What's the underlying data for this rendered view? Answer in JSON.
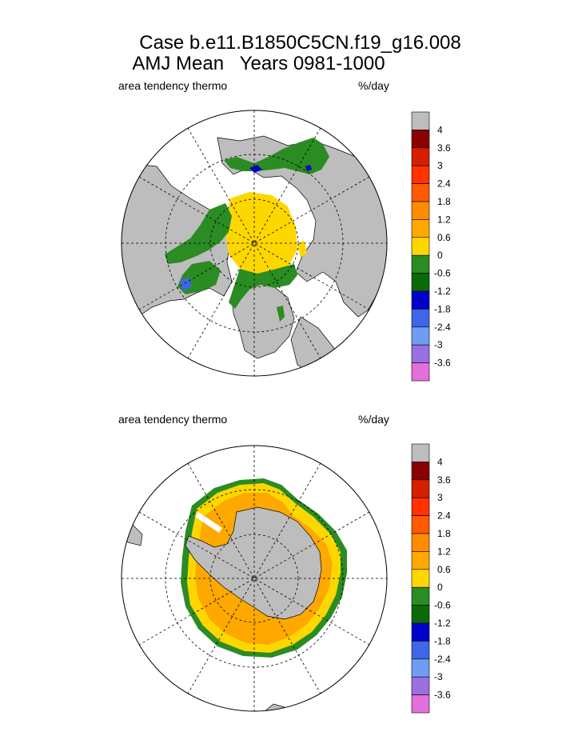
{
  "header": {
    "line1": "Case b.e11.B1850C5CN.f19_g16.008",
    "line2": "AMJ Mean   Years 0981-1000"
  },
  "colors": {
    "land": "#bdbdbd",
    "bins": [
      "#e36fdc",
      "#9a6fe0",
      "#6f9df2",
      "#3f66e8",
      "#0000c8",
      "#0a6a0a",
      "#2a8c22",
      "#ffd700",
      "#ffa800",
      "#ff8c00",
      "#ff5a00",
      "#ff3200",
      "#d61e00",
      "#8b0000"
    ]
  },
  "panels": [
    {
      "id": "north",
      "left_label": "area tendency thermo",
      "right_label": "%/day",
      "colorbar_ticks": [
        "4",
        "3.6",
        "3",
        "2.4",
        "1.8",
        "1.2",
        "0.6",
        "0",
        "-0.6",
        "-1.2",
        "-1.8",
        "-2.4",
        "-3",
        "-3.6"
      ]
    },
    {
      "id": "south",
      "left_label": "area tendency thermo",
      "right_label": "%/day",
      "colorbar_ticks": [
        "4",
        "3.6",
        "3",
        "2.4",
        "1.8",
        "1.2",
        "0.6",
        "0",
        "-0.6",
        "-1.2",
        "-1.8",
        "-2.4",
        "-3",
        "-3.6"
      ]
    }
  ]
}
